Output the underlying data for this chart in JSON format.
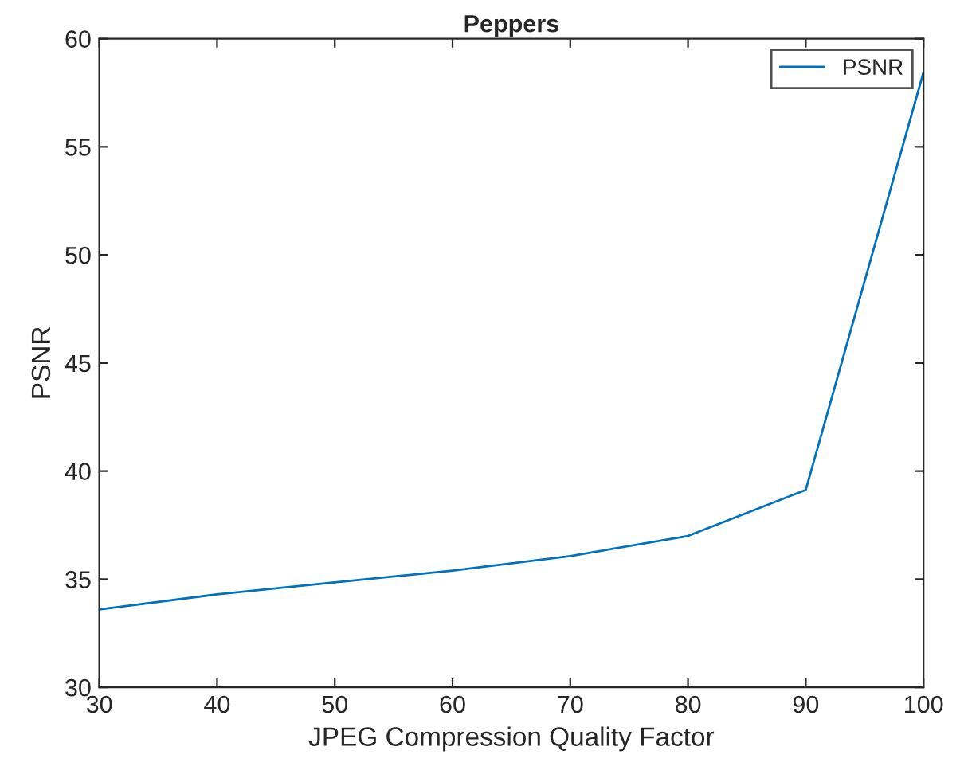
{
  "chart_data": {
    "type": "line",
    "title": "Peppers",
    "xlabel": "JPEG Compression Quality Factor",
    "ylabel": "PSNR",
    "x": [
      30,
      40,
      50,
      60,
      70,
      80,
      90,
      100
    ],
    "series": [
      {
        "name": "PSNR",
        "color": "#0072bd",
        "values": [
          33.6,
          34.3,
          34.85,
          35.4,
          36.07,
          37.0,
          39.13,
          58.45
        ]
      }
    ],
    "xlim": [
      30,
      100
    ],
    "xticks": [
      30,
      40,
      50,
      60,
      70,
      80,
      90,
      100
    ],
    "ylim": [
      30,
      60
    ],
    "yticks": [
      30,
      35,
      40,
      45,
      50,
      55,
      60
    ],
    "grid": false,
    "legend": "top right",
    "marker": "none",
    "line_style": "solid"
  }
}
